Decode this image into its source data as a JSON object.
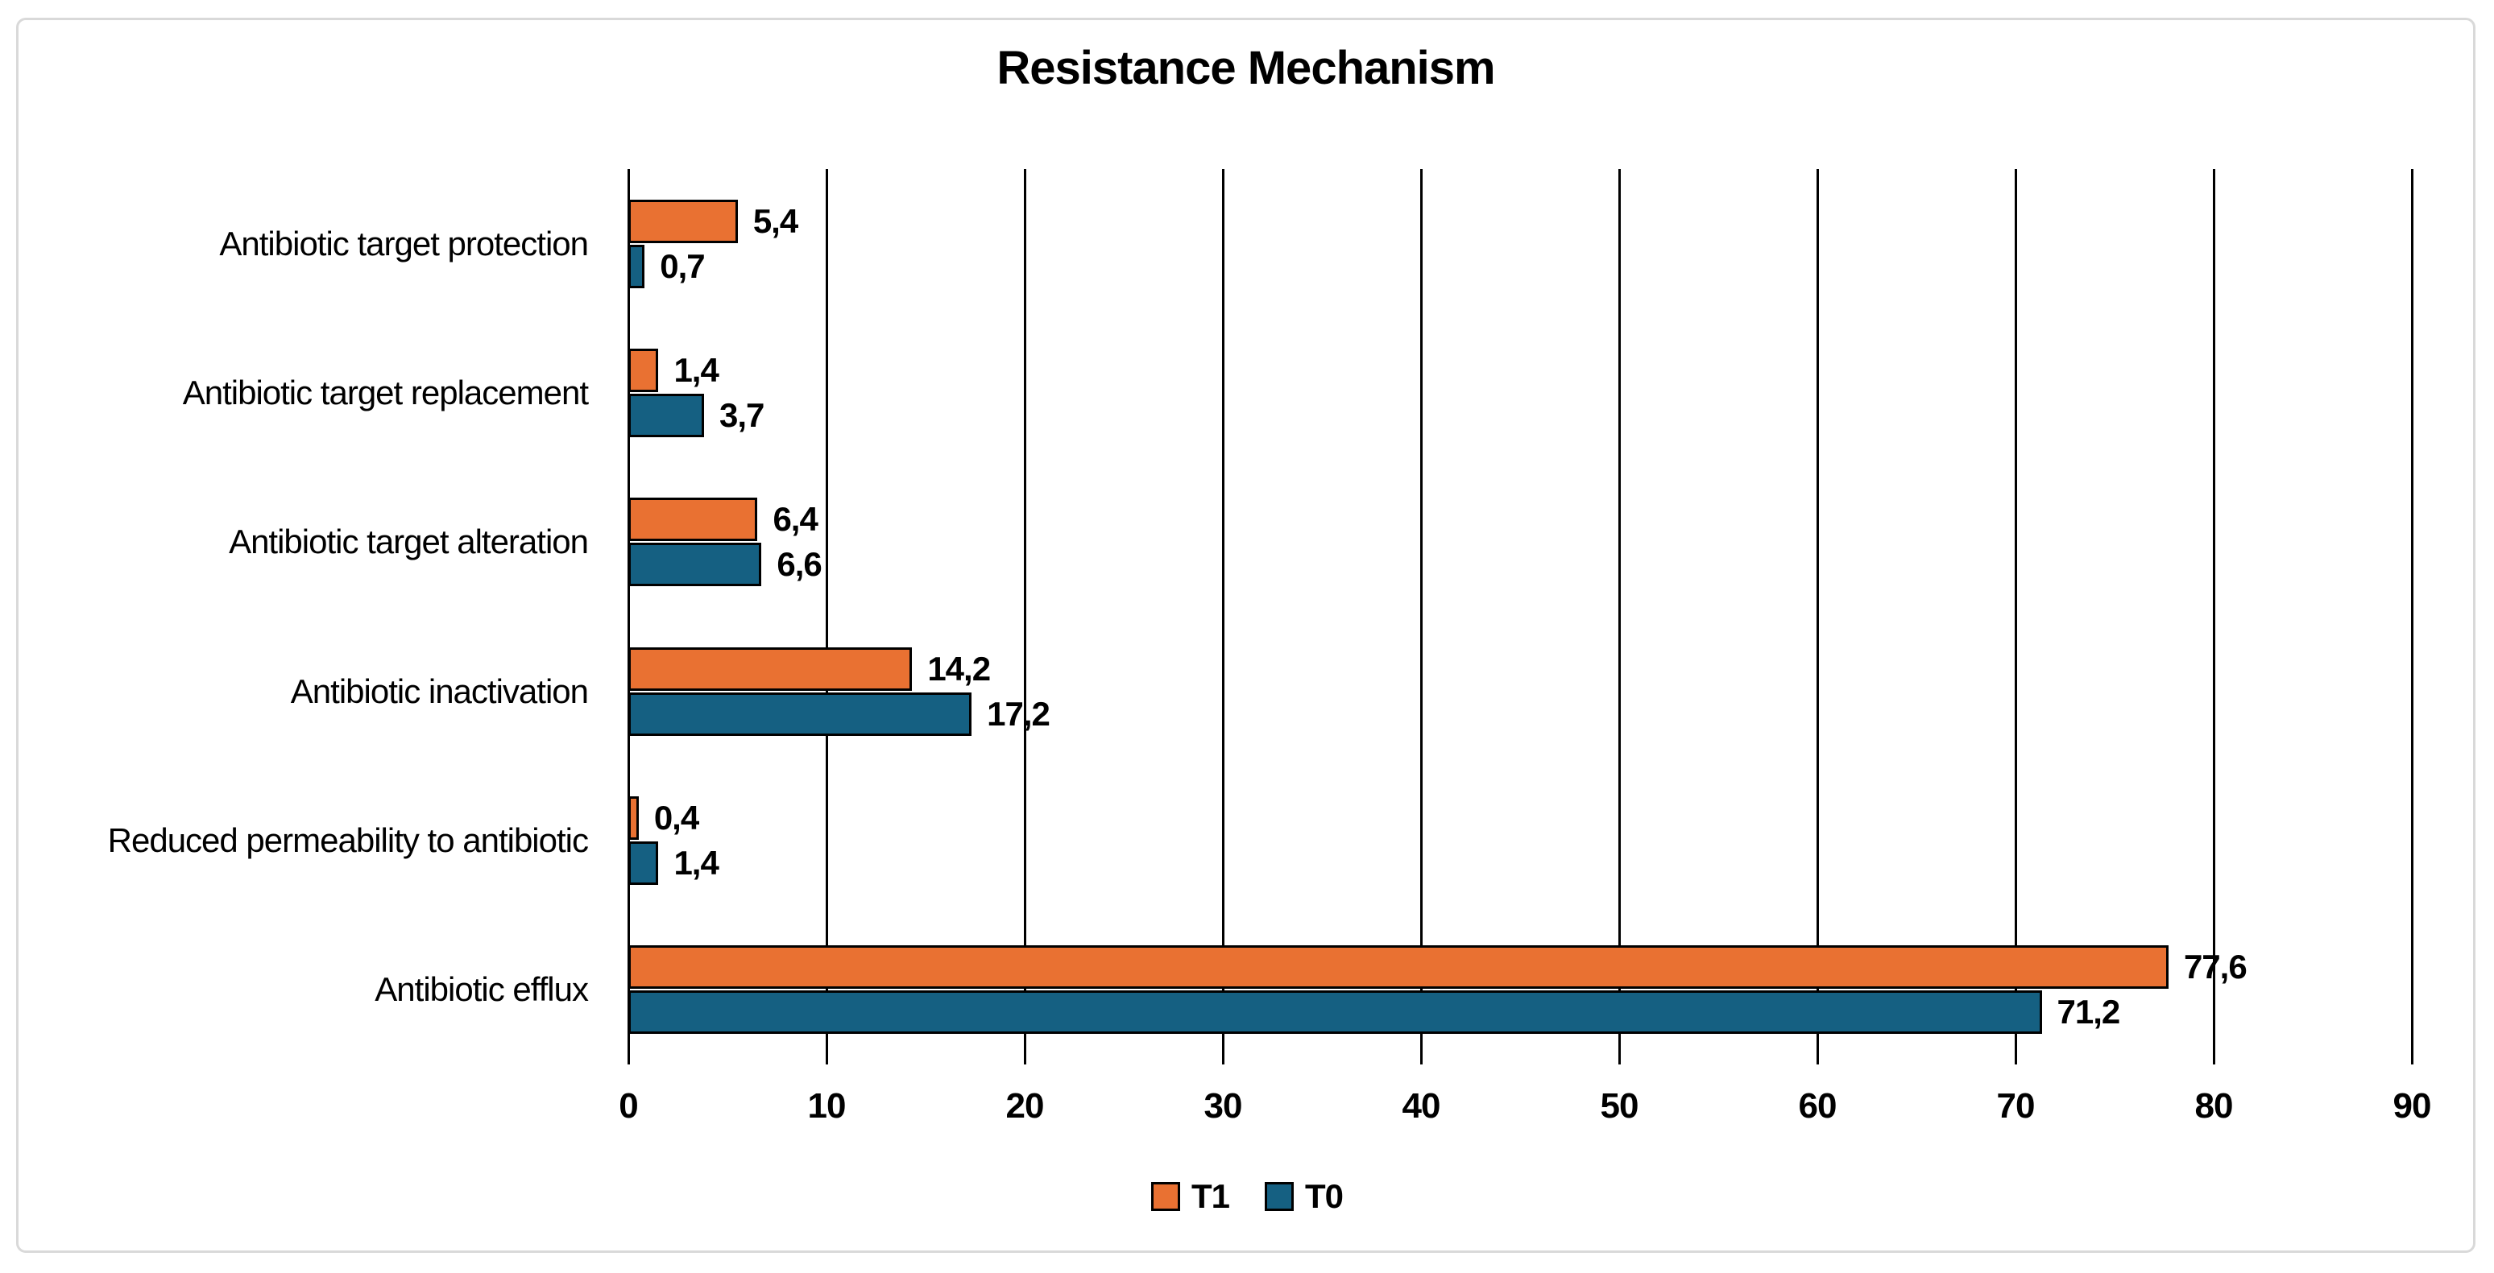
{
  "title": "Resistance Mechanism",
  "colors": {
    "series_t1": "#E97132",
    "series_t0": "#156082",
    "bar_border": "#000000",
    "gridline": "#000000",
    "axis_text": "#000000",
    "chart_frame_border": "#D9D9D9",
    "background": "#FFFFFF"
  },
  "chart_data": {
    "type": "bar",
    "orientation": "horizontal",
    "title": "Resistance Mechanism",
    "categories": [
      "Antibiotic target protection",
      "Antibiotic target replacement",
      "Antibiotic target alteration",
      "Antibiotic inactivation",
      "Reduced permeability to antibiotic",
      "Antibiotic efflux"
    ],
    "series": [
      {
        "name": "T1",
        "color": "#E97132",
        "values": [
          5.4,
          1.4,
          6.4,
          14.2,
          0.4,
          77.6
        ],
        "labels": [
          "5,4",
          "1,4",
          "6,4",
          "14,2",
          "0,4",
          "77,6"
        ]
      },
      {
        "name": "T0",
        "color": "#156082",
        "values": [
          0.7,
          3.7,
          6.6,
          17.2,
          1.4,
          71.2
        ],
        "labels": [
          "0,7",
          "3,7",
          "6,6",
          "17,2",
          "1,4",
          "71,2"
        ]
      }
    ],
    "x_axis": {
      "min": 0,
      "max": 90,
      "tick_step": 10,
      "ticks": [
        0,
        10,
        20,
        30,
        40,
        50,
        60,
        70,
        80,
        90
      ],
      "tick_labels": [
        "0",
        "10",
        "20",
        "30",
        "40",
        "50",
        "60",
        "70",
        "80",
        "90"
      ]
    },
    "value_decimal_separator": ",",
    "grid": true,
    "data_labels": true,
    "legend_position": "bottom"
  }
}
